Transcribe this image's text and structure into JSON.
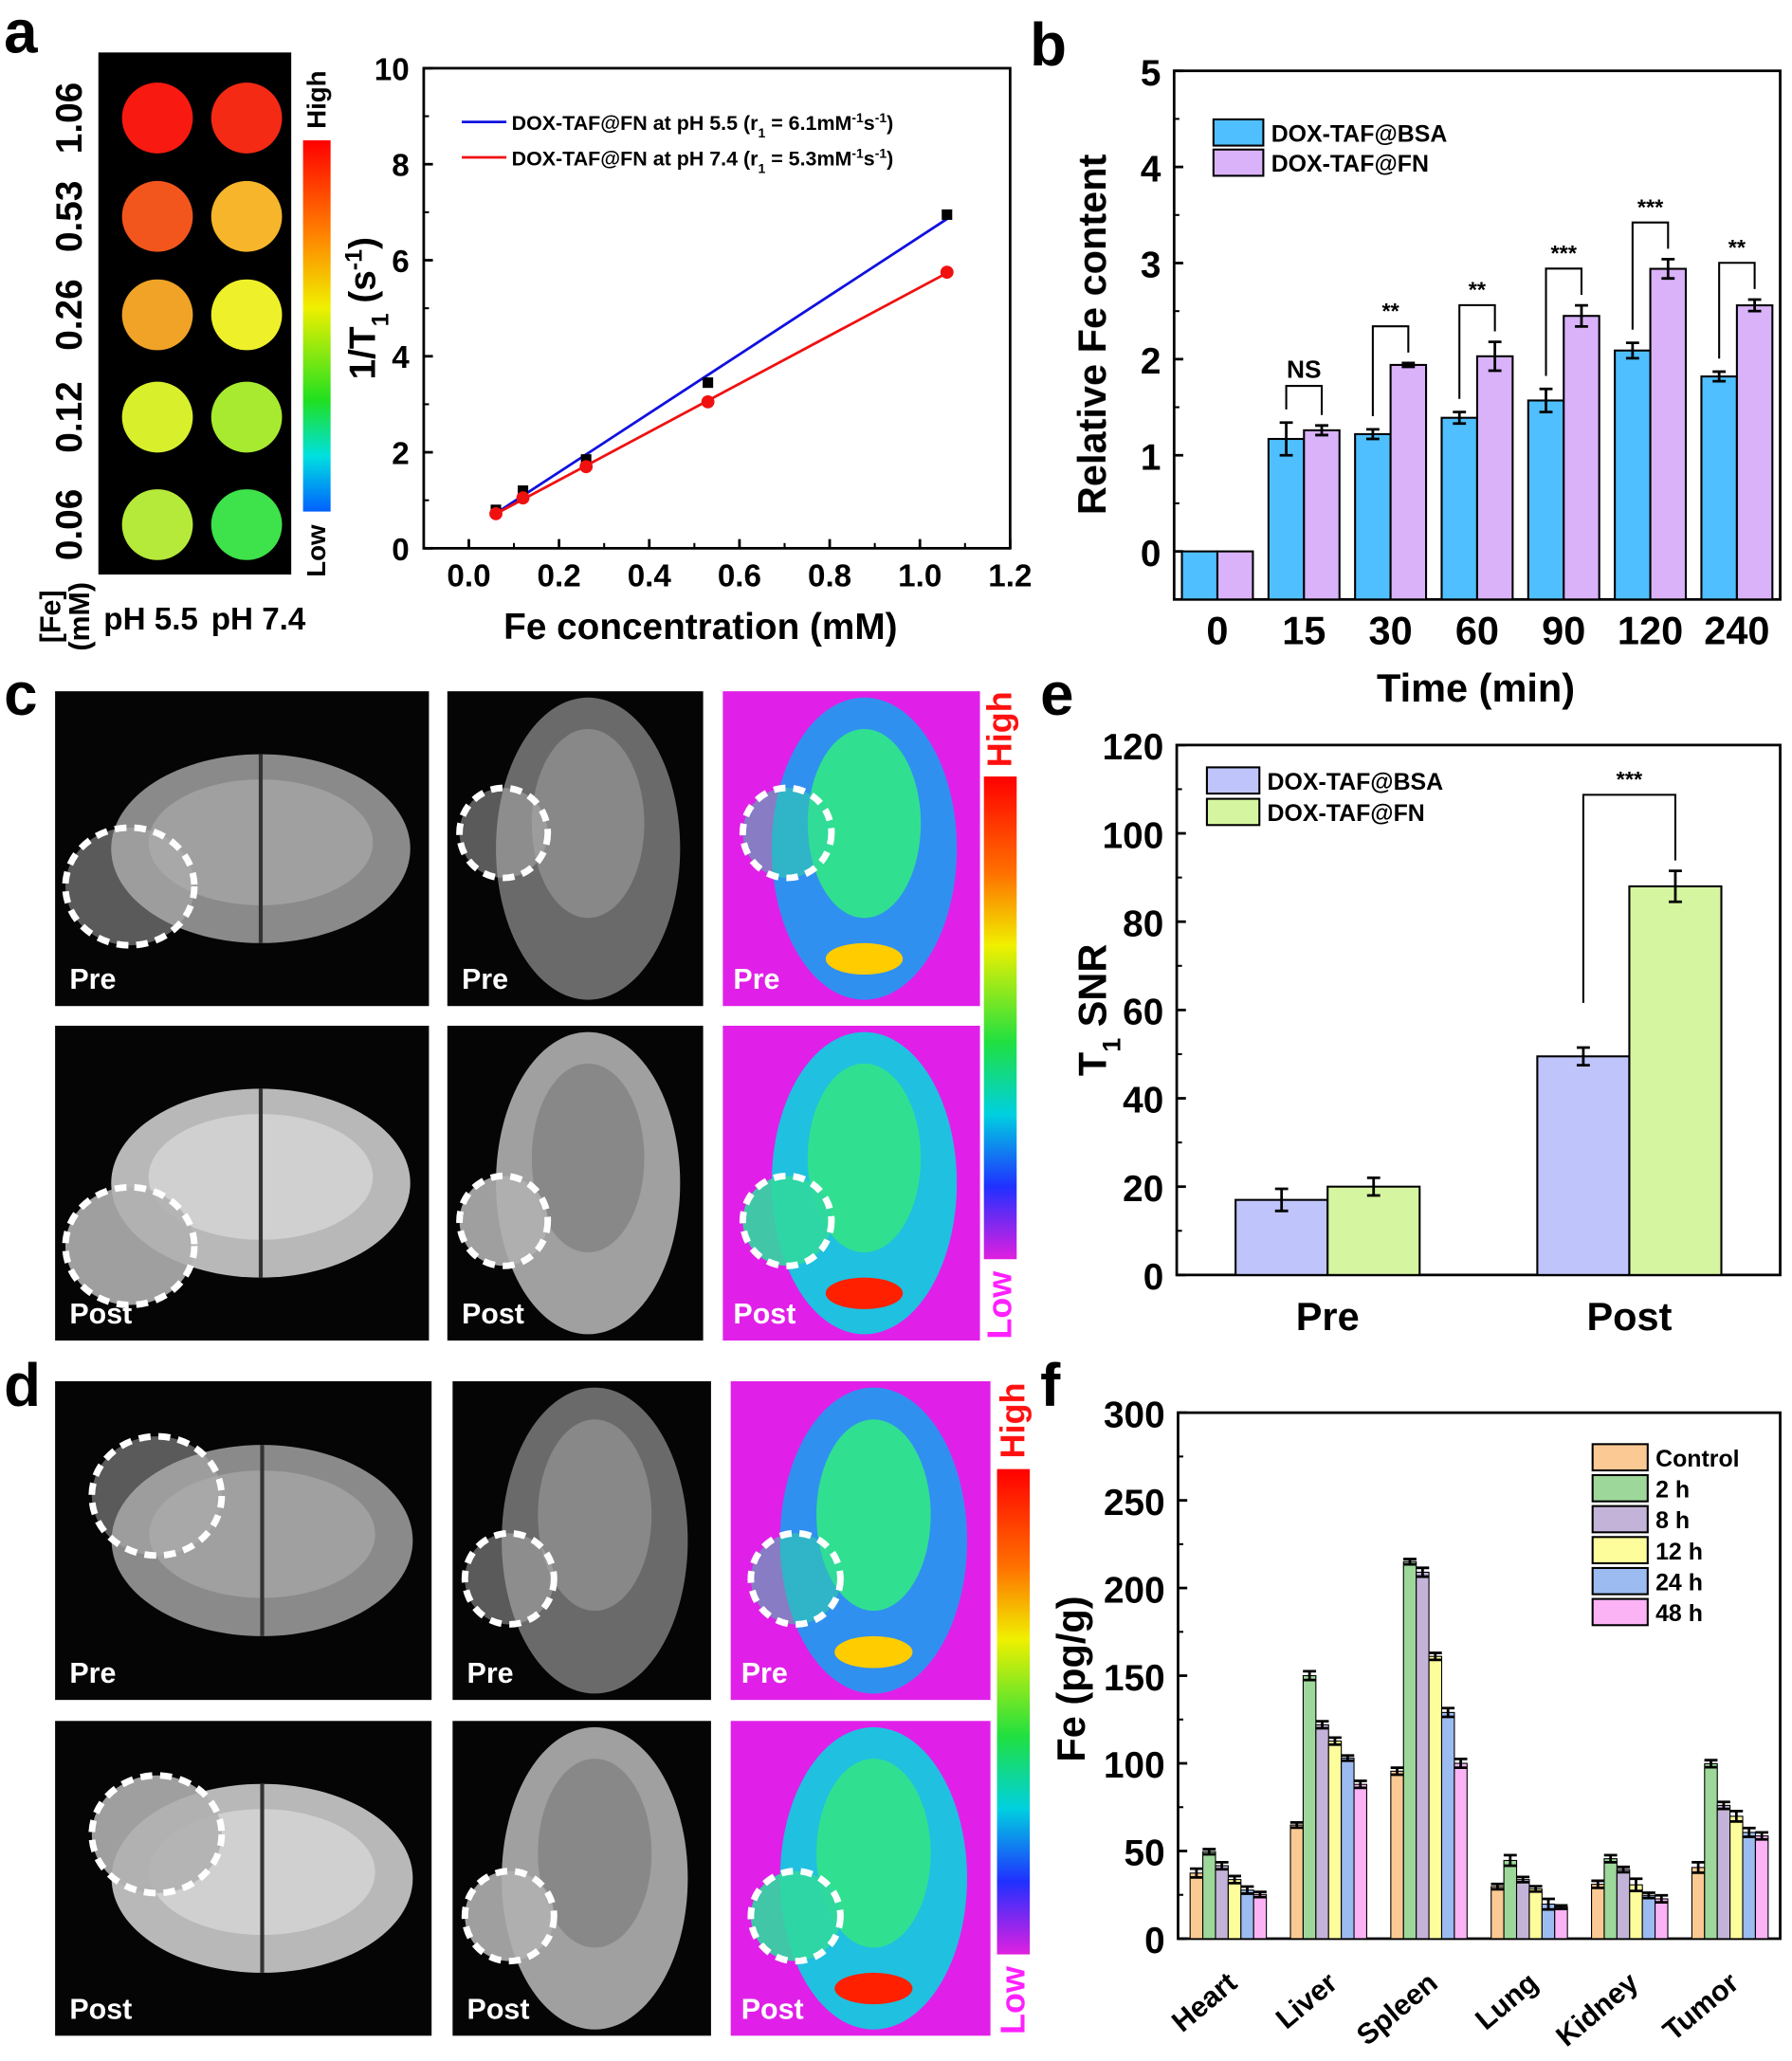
{
  "panel_labels": {
    "a": "a",
    "b": "b",
    "c": "c",
    "d": "d",
    "e": "e",
    "f": "f"
  },
  "phantom": {
    "concentrations": [
      "1.06",
      "0.53",
      "0.26",
      "0.12",
      "0.06"
    ],
    "columns": [
      "pH 5.5",
      "pH 7.4"
    ],
    "axis_label_line1": "[Fe]",
    "axis_label_line2": "(mM)",
    "colorbar_high": "High",
    "colorbar_low": "Low",
    "well_colors": [
      [
        "#f81a10",
        "#f42a14"
      ],
      [
        "#f2561c",
        "#f6b52a"
      ],
      [
        "#f0a326",
        "#eef02a"
      ],
      [
        "#d8ef2c",
        "#a8ea30"
      ],
      [
        "#b6ea3a",
        "#3ee24a"
      ]
    ]
  },
  "mri_c": {
    "pre": "Pre",
    "post": "Post",
    "colorbar_high": "High",
    "colorbar_low": "Low"
  },
  "mri_d": {
    "pre": "Pre",
    "post": "Post",
    "colorbar_high": "High",
    "colorbar_low": "Low"
  },
  "chart_data": [
    {
      "id": "a-relaxivity",
      "type": "scatter",
      "xlabel": "Fe concentration (mM)",
      "ylabel_parts": [
        {
          "t": "1/T"
        },
        {
          "t": "1",
          "sub": true
        },
        {
          "t": " (s"
        },
        {
          "t": "-1",
          "sup": true
        },
        {
          "t": ")"
        }
      ],
      "xlim": [
        -0.1,
        1.2
      ],
      "ylim": [
        0,
        10
      ],
      "xticks": [
        "0.0",
        "0.2",
        "0.4",
        "0.6",
        "0.8",
        "1.0",
        "1.2"
      ],
      "yticks": [
        "0",
        "2",
        "4",
        "6",
        "8",
        "10"
      ],
      "series": [
        {
          "name": "DOX-TAF@FN at pH 5.5",
          "label_parts": [
            {
              "t": "DOX-TAF@FN at pH 5.5 (r"
            },
            {
              "t": "1",
              "sub": true
            },
            {
              "t": " = 6.1mM"
            },
            {
              "t": "-1",
              "sup": true
            },
            {
              "t": "s"
            },
            {
              "t": "-1",
              "sup": true
            },
            {
              "t": ")"
            }
          ],
          "r1": 6.1,
          "color": "#1010e0",
          "marker": "square",
          "x": [
            0.06,
            0.12,
            0.26,
            0.53,
            1.06
          ],
          "y": [
            0.8,
            1.2,
            1.85,
            3.45,
            6.95
          ]
        },
        {
          "name": "DOX-TAF@FN at pH 7.4",
          "label_parts": [
            {
              "t": "DOX-TAF@FN at pH 7.4 (r"
            },
            {
              "t": "1",
              "sub": true
            },
            {
              "t": " = 5.3mM"
            },
            {
              "t": "-1",
              "sup": true
            },
            {
              "t": "s"
            },
            {
              "t": "-1",
              "sup": true
            },
            {
              "t": ")"
            }
          ],
          "r1": 5.3,
          "color": "#f01010",
          "marker": "circle",
          "x": [
            0.06,
            0.12,
            0.26,
            0.53,
            1.06
          ],
          "y": [
            0.72,
            1.05,
            1.7,
            3.05,
            5.75
          ]
        }
      ],
      "legend": "top-left"
    },
    {
      "id": "b-relative-fe",
      "type": "bar",
      "xlabel": "Time (min)",
      "ylabel": "Relative Fe content",
      "categories": [
        "0",
        "15",
        "30",
        "60",
        "90",
        "120",
        "240"
      ],
      "ylim": [
        -0.5,
        5
      ],
      "yticks": [
        "0",
        "1",
        "2",
        "3",
        "4",
        "5"
      ],
      "series": [
        {
          "name": "DOX-TAF@BSA",
          "color": "#4fbfff",
          "values": [
            0,
            1.17,
            1.22,
            1.39,
            1.57,
            2.09,
            1.82
          ],
          "errors": [
            0,
            0.17,
            0.05,
            0.06,
            0.12,
            0.08,
            0.05
          ]
        },
        {
          "name": "DOX-TAF@FN",
          "color": "#d9b2fa",
          "values": [
            0,
            1.26,
            1.94,
            2.03,
            2.45,
            2.94,
            2.56
          ],
          "errors": [
            0,
            0.05,
            0.02,
            0.15,
            0.11,
            0.1,
            0.06
          ]
        }
      ],
      "significance": [
        "",
        "NS",
        "**",
        "**",
        "***",
        "***",
        "**"
      ],
      "legend": "top-left"
    },
    {
      "id": "e-t1-snr",
      "type": "bar",
      "xlabel": "",
      "ylabel_parts": [
        {
          "t": "T"
        },
        {
          "t": "1",
          "sub": true
        },
        {
          "t": " SNR"
        }
      ],
      "categories": [
        "Pre",
        "Post"
      ],
      "ylim": [
        0,
        120
      ],
      "yticks": [
        "0",
        "20",
        "40",
        "60",
        "80",
        "100",
        "120"
      ],
      "series": [
        {
          "name": "DOX-TAF@BSA",
          "color": "#bfc5fa",
          "values": [
            17,
            49.5
          ],
          "errors": [
            2.5,
            2
          ]
        },
        {
          "name": "DOX-TAF@FN",
          "color": "#d6f5a0",
          "values": [
            20,
            88
          ],
          "errors": [
            2,
            3.5
          ]
        }
      ],
      "significance": [
        "",
        "***"
      ],
      "legend": "top-left"
    },
    {
      "id": "f-biodistribution",
      "type": "bar",
      "xlabel": "",
      "ylabel": "Fe (pg/g)",
      "categories": [
        "Heart",
        "Liver",
        "Spleen",
        "Lung",
        "Kidney",
        "Tumor"
      ],
      "ylim": [
        0,
        300
      ],
      "yticks": [
        "0",
        "50",
        "100",
        "150",
        "200",
        "250",
        "300"
      ],
      "series": [
        {
          "name": "Control",
          "color": "#fbc993",
          "values": [
            37.4,
            64.8,
            95.5,
            29.7,
            31,
            40.6
          ],
          "errors": [
            2.5,
            1.5,
            2,
            1.5,
            2,
            3
          ]
        },
        {
          "name": "2 h",
          "color": "#9dd89a",
          "values": [
            49.6,
            150,
            215,
            44.6,
            45.6,
            99.8
          ],
          "errors": [
            1.5,
            2.5,
            1.5,
            3,
            2,
            2
          ]
        },
        {
          "name": "8 h",
          "color": "#c4b3d8",
          "values": [
            41.6,
            122,
            209,
            33.7,
            39.4,
            76
          ],
          "errors": [
            2,
            2,
            2.5,
            1.5,
            1.5,
            2
          ]
        },
        {
          "name": "12 h",
          "color": "#fdfd9c",
          "values": [
            33.7,
            112.7,
            161,
            28.4,
            30.7,
            69.8
          ],
          "errors": [
            2,
            2,
            2,
            1.5,
            3.5,
            3
          ]
        },
        {
          "name": "24 h",
          "color": "#9cbbf0",
          "values": [
            27.7,
            103,
            129,
            19.7,
            24.7,
            60.6
          ],
          "errors": [
            2,
            1.5,
            2.5,
            3,
            1.5,
            2.5
          ]
        },
        {
          "name": "48 h",
          "color": "#fbb3f5",
          "values": [
            25.2,
            88,
            100,
            18,
            22.7,
            58.6
          ],
          "errors": [
            1.5,
            2,
            2.5,
            1,
            2,
            2
          ]
        }
      ],
      "legend": "top-right"
    }
  ]
}
